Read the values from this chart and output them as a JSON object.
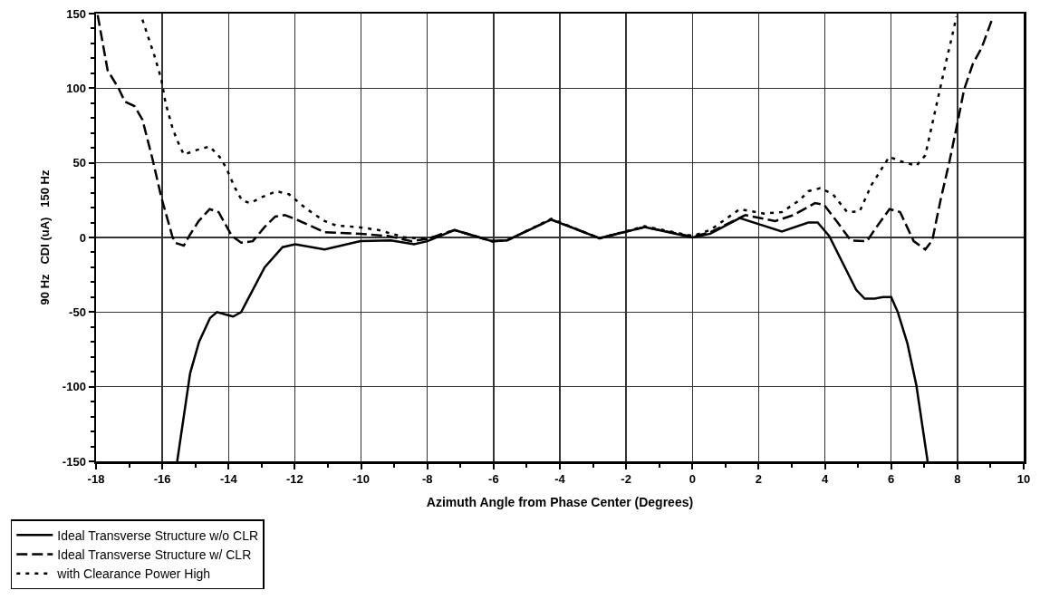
{
  "chart_data": {
    "type": "line",
    "xlabel": "Azimuth Angle from Phase Center (Degrees)",
    "ylabel": "90 Hz   CDI (uA)   150 Hz",
    "xlim": [
      -18,
      10
    ],
    "xticks": [
      -18,
      -16,
      -14,
      -12,
      -10,
      -8,
      -6,
      -4,
      -2,
      0,
      2,
      4,
      6,
      8,
      10
    ],
    "ylim": [
      -150,
      150
    ],
    "yticks": [
      -150,
      -100,
      -50,
      0,
      50,
      100,
      150
    ],
    "grid": true,
    "legend": "bottom left",
    "marker": "none",
    "series": [
      {
        "name": "Ideal Transverse Structure w/o CLR",
        "color": "#000000",
        "line_style": "solid",
        "x": [
          -15.55,
          -15.16,
          -14.89,
          -14.56,
          -14.35,
          -13.86,
          -13.62,
          -12.91,
          -12.37,
          -11.99,
          -11.1,
          -10.02,
          -9.1,
          -8.4,
          -8.0,
          -7.18,
          -6.04,
          -5.6,
          -4.26,
          -2.8,
          -1.44,
          0.0,
          0.54,
          1.43,
          2.7,
          3.5,
          3.78,
          4.13,
          4.94,
          5.2,
          5.5,
          5.75,
          6.0,
          6.2,
          6.49,
          6.76,
          7.1
        ],
        "values": [
          -150,
          -91,
          -70,
          -54,
          -50,
          -53,
          -50,
          -20,
          -6.5,
          -4.5,
          -8,
          -2.5,
          -2,
          -4.5,
          -2.5,
          5,
          -2.5,
          -2,
          12,
          -0.5,
          7,
          0,
          2.5,
          13,
          4,
          10,
          10,
          1,
          -35,
          -41,
          -41,
          -40,
          -40,
          -50,
          -71,
          -99,
          -150
        ]
      },
      {
        "name": "Ideal Transverse Structure w/ CLR",
        "color": "#000000",
        "line_style": "dashed",
        "x": [
          -17.95,
          -17.65,
          -17.32,
          -17.13,
          -16.84,
          -16.6,
          -16.3,
          -16.03,
          -15.7,
          -15.62,
          -15.35,
          -15.16,
          -14.9,
          -14.57,
          -14.3,
          -13.9,
          -13.62,
          -13.27,
          -12.91,
          -12.59,
          -12.3,
          -12.0,
          -11.1,
          -10.0,
          -9.2,
          -8.47,
          -8.0,
          -7.18,
          -6.04,
          -5.6,
          -4.26,
          -2.8,
          -1.44,
          0.0,
          0.54,
          1.6,
          2.5,
          3.05,
          3.7,
          3.97,
          4.4,
          4.78,
          5.27,
          5.54,
          5.95,
          6.27,
          6.68,
          7.03,
          7.24,
          7.49,
          7.76,
          8.03,
          8.2,
          8.46,
          8.73,
          9.06
        ],
        "values": [
          149,
          112,
          100,
          91,
          88,
          79,
          53,
          27,
          1,
          -3.5,
          -5.5,
          2,
          11,
          19,
          17,
          1,
          -3.5,
          -2.5,
          7,
          14,
          15,
          12.5,
          3.5,
          2.4,
          1,
          -2.5,
          -1,
          5,
          -2.5,
          -2,
          12,
          -0.5,
          7,
          0.5,
          3.5,
          15,
          11,
          15,
          23,
          22,
          9.5,
          -2,
          -2.5,
          6.5,
          19,
          17,
          -2.5,
          -8,
          -2,
          25,
          51,
          80,
          99,
          116,
          127,
          147
        ]
      },
      {
        "name": "with Clearance Power High",
        "color": "#000000",
        "line_style": "dotted",
        "x": [
          -16.6,
          -16.24,
          -16.03,
          -15.9,
          -15.7,
          -15.57,
          -15.35,
          -14.97,
          -14.57,
          -14.27,
          -14.08,
          -13.8,
          -13.6,
          -13.35,
          -13.0,
          -12.55,
          -12.18,
          -11.64,
          -11.1,
          -10.75,
          -10.1,
          -9.48,
          -8.67,
          -8.0,
          -7.18,
          -6.04,
          -5.6,
          -4.26,
          -2.8,
          -1.44,
          0.0,
          0.54,
          1.43,
          2.16,
          2.7,
          3.24,
          3.5,
          3.86,
          4.24,
          4.67,
          5.05,
          5.4,
          5.94,
          6.3,
          6.76,
          7.03,
          7.38,
          7.65,
          7.84,
          7.97
        ],
        "values": [
          146,
          122,
          106,
          90,
          74,
          66,
          55.5,
          58.5,
          61,
          54,
          47,
          33,
          25,
          23,
          27,
          31,
          29,
          19,
          11,
          8,
          7,
          5,
          0,
          -1,
          5,
          -2.5,
          -2,
          12.5,
          -0.5,
          7.5,
          1,
          5,
          19,
          16,
          17,
          25,
          31,
          33,
          29,
          17,
          17.5,
          35,
          54,
          51,
          48,
          55,
          90,
          117,
          135,
          148
        ]
      }
    ]
  }
}
